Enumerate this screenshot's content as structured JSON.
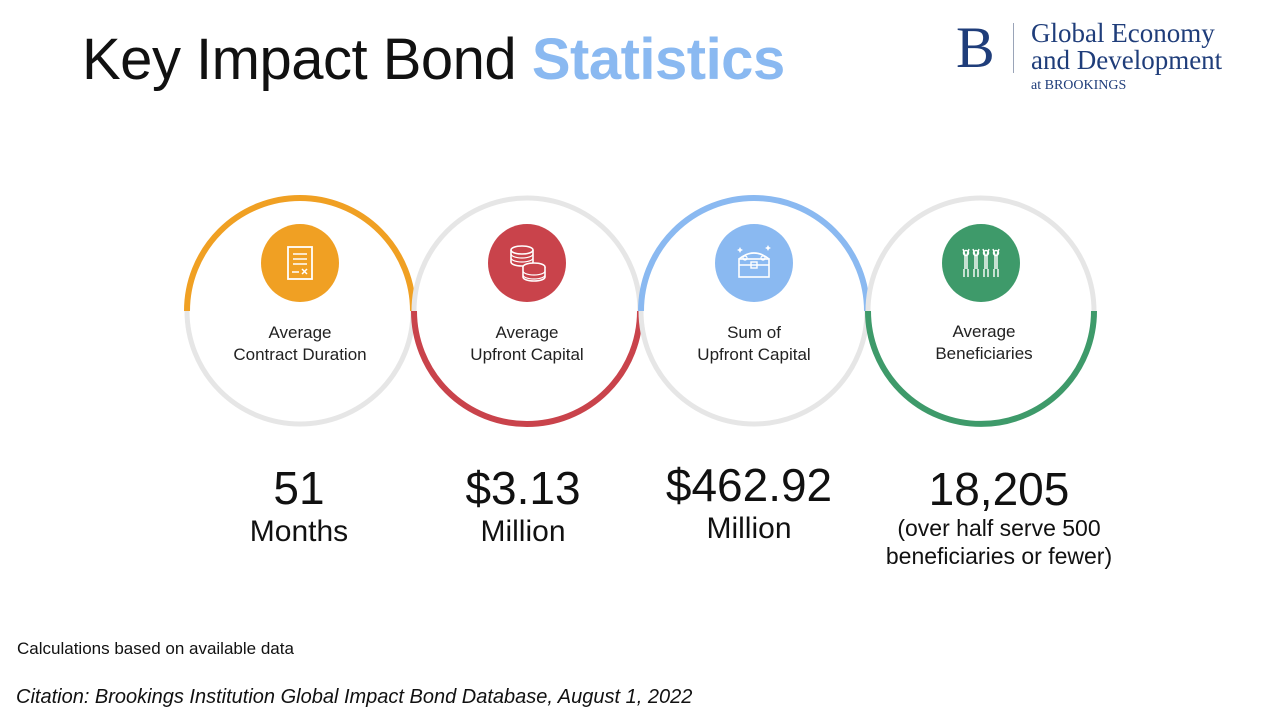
{
  "title": {
    "main": "Key Impact Bond ",
    "accent": "Statistics"
  },
  "logo": {
    "mark": "B",
    "line1": "Global Economy",
    "line2": "and Development",
    "line3": "at BROOKINGS"
  },
  "colors": {
    "orange": "#f0a023",
    "red": "#c9434b",
    "blue": "#8ab9f1",
    "green": "#3e9a6a",
    "ring_gray": "#e6e6e6",
    "accent_title": "#8ab9f1",
    "brand_navy": "#1f3d7a"
  },
  "stats": [
    {
      "icon": "contract-document-icon",
      "label_line1": "Average",
      "label_line2": "Contract Duration",
      "value": "51",
      "unit": "Months",
      "note": ""
    },
    {
      "icon": "coins-icon",
      "label_line1": "Average",
      "label_line2": "Upfront Capital",
      "value": "$3.13",
      "unit": "Million",
      "note": ""
    },
    {
      "icon": "treasure-chest-icon",
      "label_line1": "Sum of",
      "label_line2": "Upfront Capital",
      "value": "$462.92",
      "unit": "Million",
      "note": ""
    },
    {
      "icon": "people-cheering-icon",
      "label_line1": "Average",
      "label_line2": "Beneficiaries",
      "value": "18,205",
      "unit": "",
      "note_line1": "(over half serve 500",
      "note_line2": "beneficiaries or fewer)"
    }
  ],
  "footnote": "Calculations based on available data",
  "citation": "Citation: Brookings Institution Global Impact Bond Database, August 1, 2022"
}
